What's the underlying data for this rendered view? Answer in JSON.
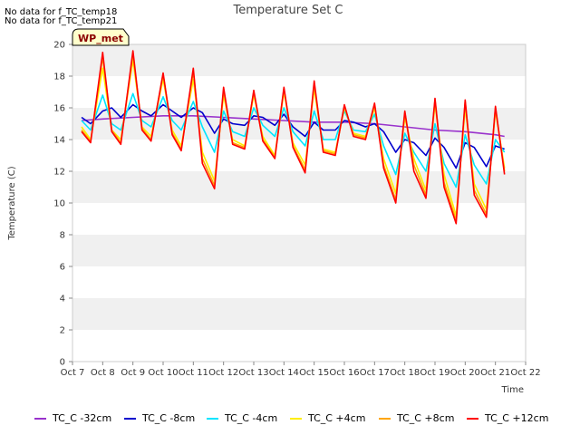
{
  "no_data_notes": [
    "No data for f_TC_temp18",
    "No data for f_TC_temp21"
  ],
  "badge": "WP_met",
  "chart_data": {
    "type": "line",
    "title": "Temperature Set C",
    "xlabel": "Time",
    "ylabel": "Temperature (C)",
    "ylim": [
      0,
      20
    ],
    "yticks": [
      0,
      2,
      4,
      6,
      8,
      10,
      12,
      14,
      16,
      18,
      20
    ],
    "xlim": [
      7,
      22
    ],
    "xticks": [
      {
        "value": 7,
        "label": "Oct 7"
      },
      {
        "value": 8,
        "label": "Oct 8"
      },
      {
        "value": 9,
        "label": "Oct 9"
      },
      {
        "value": 10,
        "label": "Oct 10"
      },
      {
        "value": 11,
        "label": "Oct 11"
      },
      {
        "value": 12,
        "label": "Oct 12"
      },
      {
        "value": 13,
        "label": "Oct 13"
      },
      {
        "value": 14,
        "label": "Oct 14"
      },
      {
        "value": 15,
        "label": "Oct 15"
      },
      {
        "value": 16,
        "label": "Oct 16"
      },
      {
        "value": 17,
        "label": "Oct 17"
      },
      {
        "value": 18,
        "label": "Oct 18"
      },
      {
        "value": 19,
        "label": "Oct 19"
      },
      {
        "value": 20,
        "label": "Oct 20"
      },
      {
        "value": 21,
        "label": "Oct 21"
      },
      {
        "value": 22,
        "label": "Oct 22"
      }
    ],
    "grid": "horizontal bands",
    "legend_position": "bottom",
    "series": [
      {
        "name": "TC_C -32cm",
        "color": "#9932cc",
        "x": [
          7.3,
          8,
          9,
          10,
          11,
          12,
          13,
          14,
          15,
          16,
          17,
          18,
          19,
          20,
          21,
          21.3
        ],
        "y": [
          15.2,
          15.3,
          15.4,
          15.5,
          15.5,
          15.4,
          15.3,
          15.2,
          15.1,
          15.1,
          15.0,
          14.8,
          14.6,
          14.5,
          14.3,
          14.2
        ]
      },
      {
        "name": "TC_C -8cm",
        "color": "#0000cd",
        "x": [
          7.3,
          7.6,
          8.0,
          8.3,
          8.6,
          9.0,
          9.3,
          9.6,
          10.0,
          10.3,
          10.6,
          11.0,
          11.3,
          11.7,
          12.0,
          12.3,
          12.7,
          13.0,
          13.3,
          13.7,
          14.0,
          14.3,
          14.7,
          15.0,
          15.3,
          15.7,
          16.0,
          16.3,
          16.7,
          17.0,
          17.3,
          17.7,
          18.0,
          18.3,
          18.7,
          19.0,
          19.3,
          19.7,
          20.0,
          20.3,
          20.7,
          21.0,
          21.3
        ],
        "y": [
          15.4,
          15.0,
          15.8,
          16.0,
          15.4,
          16.2,
          15.8,
          15.5,
          16.2,
          15.8,
          15.4,
          16.0,
          15.7,
          14.4,
          15.3,
          15.0,
          14.9,
          15.5,
          15.4,
          14.9,
          15.6,
          14.8,
          14.2,
          15.1,
          14.6,
          14.6,
          15.2,
          15.1,
          14.8,
          15.0,
          14.5,
          13.2,
          14.0,
          13.8,
          13.0,
          14.1,
          13.5,
          12.2,
          13.8,
          13.5,
          12.3,
          13.6,
          13.4
        ]
      },
      {
        "name": "TC_C -4cm",
        "color": "#00e5ff",
        "x": [
          7.3,
          7.6,
          8.0,
          8.3,
          8.6,
          9.0,
          9.3,
          9.6,
          10.0,
          10.3,
          10.6,
          11.0,
          11.3,
          11.7,
          12.0,
          12.3,
          12.7,
          13.0,
          13.3,
          13.7,
          14.0,
          14.3,
          14.7,
          15.0,
          15.3,
          15.7,
          16.0,
          16.3,
          16.7,
          17.0,
          17.3,
          17.7,
          18.0,
          18.3,
          18.7,
          19.0,
          19.3,
          19.7,
          20.0,
          20.3,
          20.7,
          21.0,
          21.3
        ],
        "y": [
          15.2,
          14.6,
          16.8,
          15.0,
          14.6,
          16.9,
          15.2,
          14.8,
          16.7,
          15.2,
          14.6,
          16.4,
          14.8,
          13.2,
          15.8,
          14.5,
          14.2,
          16.0,
          14.9,
          14.2,
          16.0,
          14.5,
          13.6,
          15.8,
          14.0,
          14.0,
          15.8,
          14.6,
          14.5,
          15.6,
          13.6,
          11.8,
          14.4,
          13.2,
          12.0,
          15.0,
          12.5,
          11.0,
          14.3,
          12.4,
          11.2,
          14.0,
          13.2
        ]
      },
      {
        "name": "TC_C +4cm",
        "color": "#ffee00",
        "x": [
          7.3,
          7.6,
          8.0,
          8.3,
          8.6,
          9.0,
          9.3,
          9.6,
          10.0,
          10.3,
          10.6,
          11.0,
          11.3,
          11.7,
          12.0,
          12.3,
          12.7,
          13.0,
          13.3,
          13.7,
          14.0,
          14.3,
          14.7,
          15.0,
          15.3,
          15.7,
          16.0,
          16.3,
          16.7,
          17.0,
          17.3,
          17.7,
          18.0,
          18.3,
          18.7,
          19.0,
          19.3,
          19.7,
          20.0,
          20.3,
          20.7,
          21.0,
          21.3
        ],
        "y": [
          14.8,
          14.0,
          18.5,
          14.6,
          14.0,
          19.0,
          14.8,
          14.2,
          17.8,
          14.6,
          13.6,
          17.8,
          13.2,
          11.4,
          16.8,
          14.0,
          13.6,
          16.8,
          14.2,
          13.0,
          17.0,
          13.8,
          12.4,
          17.2,
          13.4,
          13.2,
          16.0,
          14.4,
          14.2,
          16.0,
          12.8,
          10.6,
          15.4,
          12.8,
          10.8,
          16.2,
          11.8,
          9.2,
          16.0,
          11.2,
          9.6,
          15.8,
          12.2
        ]
      },
      {
        "name": "TC_C +8cm",
        "color": "#ffa500",
        "x": [
          7.3,
          7.6,
          8.0,
          8.3,
          8.6,
          9.0,
          9.3,
          9.6,
          10.0,
          10.3,
          10.6,
          11.0,
          11.3,
          11.7,
          12.0,
          12.3,
          12.7,
          13.0,
          13.3,
          13.7,
          14.0,
          14.3,
          14.7,
          15.0,
          15.3,
          15.7,
          16.0,
          16.3,
          16.7,
          17.0,
          17.3,
          17.7,
          18.0,
          18.3,
          18.7,
          19.0,
          19.3,
          19.7,
          20.0,
          20.3,
          20.7,
          21.0,
          21.3
        ],
        "y": [
          14.6,
          13.9,
          19.2,
          14.6,
          13.8,
          19.4,
          14.7,
          14.0,
          18.1,
          14.4,
          13.4,
          18.3,
          12.8,
          11.1,
          17.1,
          13.8,
          13.5,
          17.0,
          14.0,
          12.9,
          17.2,
          13.6,
          12.1,
          17.5,
          13.3,
          13.1,
          16.1,
          14.3,
          14.1,
          16.2,
          12.4,
          10.2,
          15.7,
          12.4,
          10.5,
          16.5,
          11.3,
          8.9,
          16.4,
          10.8,
          9.3,
          16.0,
          12.0
        ]
      },
      {
        "name": "TC_C +12cm",
        "color": "#ff0000",
        "x": [
          7.3,
          7.6,
          8.0,
          8.3,
          8.6,
          9.0,
          9.3,
          9.6,
          10.0,
          10.3,
          10.6,
          11.0,
          11.3,
          11.7,
          12.0,
          12.3,
          12.7,
          13.0,
          13.3,
          13.7,
          14.0,
          14.3,
          14.7,
          15.0,
          15.3,
          15.7,
          16.0,
          16.3,
          16.7,
          17.0,
          17.3,
          17.7,
          18.0,
          18.3,
          18.7,
          19.0,
          19.3,
          19.7,
          20.0,
          20.3,
          20.7,
          21.0,
          21.3
        ],
        "y": [
          14.5,
          13.8,
          19.5,
          14.5,
          13.7,
          19.6,
          14.6,
          13.9,
          18.2,
          14.3,
          13.3,
          18.5,
          12.5,
          10.9,
          17.3,
          13.7,
          13.4,
          17.1,
          13.9,
          12.8,
          17.3,
          13.5,
          11.9,
          17.7,
          13.2,
          13.0,
          16.2,
          14.2,
          14.0,
          16.3,
          12.2,
          10.0,
          15.8,
          12.0,
          10.3,
          16.6,
          11.0,
          8.7,
          16.5,
          10.5,
          9.1,
          16.1,
          11.8
        ]
      }
    ]
  }
}
